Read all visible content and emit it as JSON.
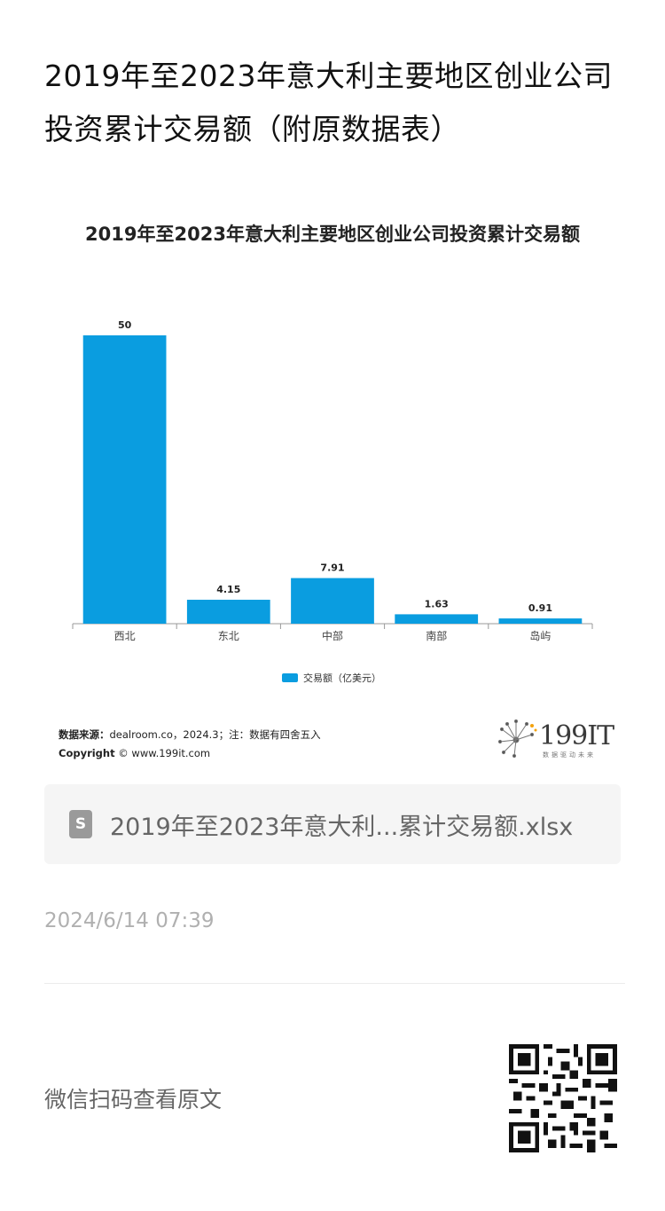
{
  "article": {
    "title": "2019年至2023年意大利主要地区创业公司投资累计交易额（附原数据表）"
  },
  "chart_data": {
    "type": "bar",
    "title": "2019年至2023年意大利主要地区创业公司投资累计交易额",
    "categories": [
      "西北",
      "东北",
      "中部",
      "南部",
      "岛屿"
    ],
    "series": [
      {
        "name": "交易额（亿美元）",
        "values": [
          50,
          4.15,
          7.91,
          1.63,
          0.91
        ]
      }
    ],
    "data_labels": [
      "50",
      "4.15",
      "7.91",
      "1.63",
      "0.91"
    ],
    "ylim": [
      0,
      50
    ],
    "grid": false,
    "legend_position": "bottom",
    "bar_color": "#0a9de0"
  },
  "source": {
    "label": "数据来源：",
    "text": "dealroom.co，2024.3；注：数据有四舍五入",
    "copyright_label": "Copyright",
    "copyright_text": "© www.199it.com"
  },
  "logo": {
    "text": "199IT",
    "tagline": "数据驱动未来"
  },
  "file": {
    "icon": "spreadsheet-icon",
    "name": "2019年至2023年意大利...累计交易额.xlsx"
  },
  "meta": {
    "timestamp": "2024/6/14 07:39",
    "scan_prompt": "微信扫码查看原文"
  }
}
